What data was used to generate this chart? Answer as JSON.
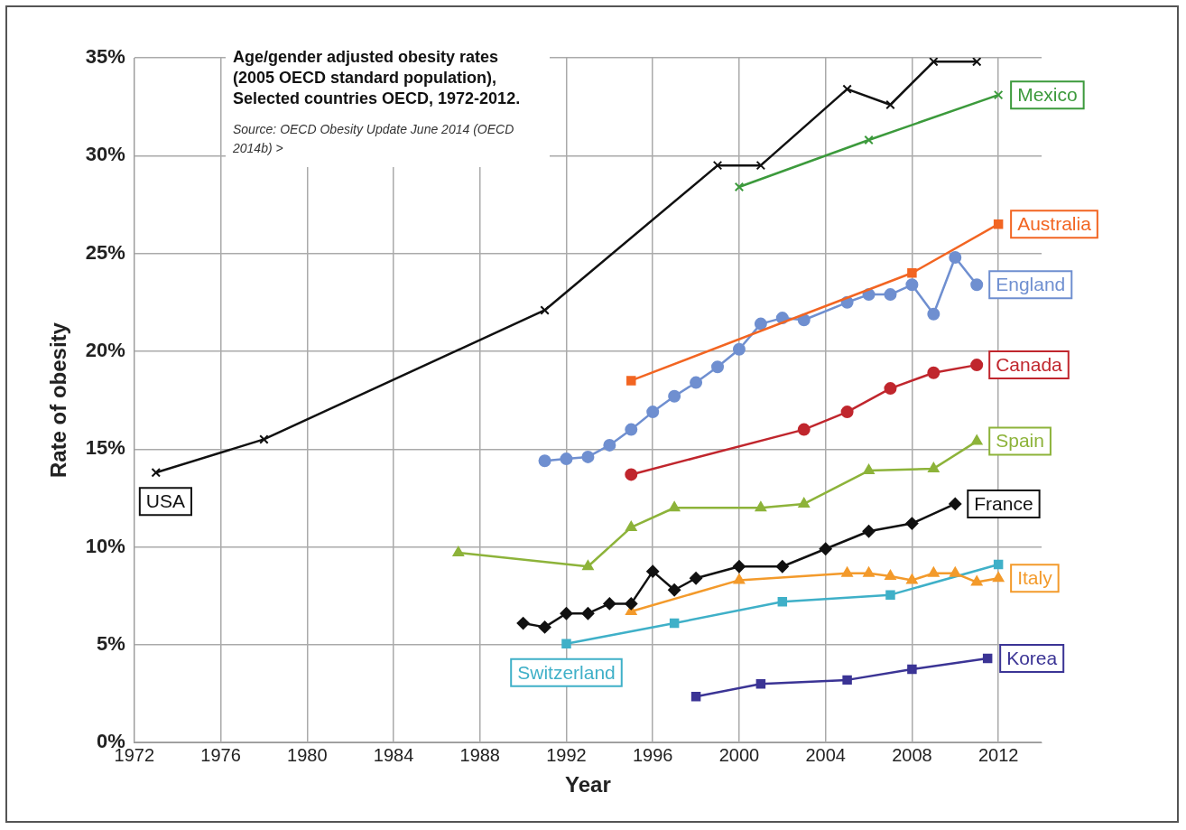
{
  "chart_data": {
    "type": "line",
    "title": "Age/gender adjusted obesity rates (2005 OECD standard population), Selected countries OECD, 1972-2012.",
    "annotations": [
      "Source: OECD Obesity Update June 2014 (OECD 2014b) >"
    ],
    "xlabel": "Year",
    "ylabel": "Rate of obesity",
    "xlim": [
      1972,
      2014
    ],
    "xticks": [
      1972,
      1976,
      1980,
      1984,
      1988,
      1992,
      1996,
      2000,
      2004,
      2008,
      2012
    ],
    "ylim": [
      0,
      35
    ],
    "yticks": [
      {
        "value": 0,
        "label": "0%"
      },
      {
        "value": 5,
        "label": "5%"
      },
      {
        "value": 10,
        "label": "10%"
      },
      {
        "value": 15,
        "label": "15%"
      },
      {
        "value": 20,
        "label": "20%"
      },
      {
        "value": 25,
        "label": "25%"
      },
      {
        "value": 30,
        "label": "30%"
      },
      {
        "value": 35,
        "label": "35%"
      }
    ],
    "grid": true,
    "legend": false,
    "series": [
      {
        "name": "USA",
        "color": "#111111",
        "marker": "cross",
        "x": [
          1973,
          1978,
          1991,
          1999,
          2001,
          2005,
          2007,
          2009,
          2011
        ],
        "values": [
          13.8,
          15.5,
          22.1,
          29.5,
          29.5,
          33.4,
          32.6,
          34.8,
          34.8
        ]
      },
      {
        "name": "Mexico",
        "color": "#3c9a3c",
        "marker": "cross",
        "x": [
          2000,
          2006,
          2012
        ],
        "values": [
          28.4,
          30.8,
          33.1
        ]
      },
      {
        "name": "Australia",
        "color": "#f26522",
        "marker": "square",
        "x": [
          1995,
          2008,
          2012
        ],
        "values": [
          18.5,
          24.0,
          26.5
        ]
      },
      {
        "name": "England",
        "color": "#6f8fd0",
        "marker": "circle",
        "x": [
          1991,
          1992,
          1993,
          1994,
          1995,
          1996,
          1997,
          1998,
          1999,
          2000,
          2001,
          2002,
          2003,
          2005,
          2006,
          2007,
          2008,
          2009,
          2010,
          2011
        ],
        "values": [
          14.4,
          14.5,
          14.6,
          15.2,
          16.0,
          16.9,
          17.7,
          18.4,
          19.2,
          20.1,
          21.4,
          21.7,
          21.6,
          22.5,
          22.9,
          22.9,
          23.4,
          21.9,
          24.8,
          23.4
        ]
      },
      {
        "name": "Canada",
        "color": "#c0262d",
        "marker": "circle",
        "x": [
          1995,
          2003,
          2005,
          2007,
          2009,
          2011
        ],
        "values": [
          13.7,
          16.0,
          16.9,
          18.1,
          18.9,
          19.3
        ]
      },
      {
        "name": "Spain",
        "color": "#8db33a",
        "marker": "triangle",
        "x": [
          1987,
          1993,
          1995,
          1997,
          2001,
          2003,
          2006,
          2009,
          2011
        ],
        "values": [
          9.7,
          9.0,
          11.0,
          12.0,
          12.0,
          12.2,
          13.9,
          14.0,
          15.4
        ]
      },
      {
        "name": "France",
        "color": "#111111",
        "marker": "diamond",
        "x": [
          1990,
          1991,
          1992,
          1993,
          1994,
          1995,
          1996,
          1997,
          1998,
          2000,
          2002,
          2004,
          2006,
          2008,
          2010
        ],
        "values": [
          6.1,
          5.9,
          6.6,
          6.6,
          7.1,
          7.1,
          8.75,
          7.8,
          8.4,
          9.0,
          9.0,
          9.9,
          10.8,
          11.2,
          12.2
        ]
      },
      {
        "name": "Italy",
        "color": "#f39a2b",
        "marker": "triangle",
        "x": [
          1995,
          2000,
          2005,
          2006,
          2007,
          2008,
          2009,
          2010,
          2011,
          2012
        ],
        "values": [
          6.7,
          8.3,
          8.65,
          8.65,
          8.5,
          8.3,
          8.65,
          8.65,
          8.2,
          8.4
        ]
      },
      {
        "name": "Switzerland",
        "color": "#3fb0c8",
        "marker": "square",
        "x": [
          1992,
          1997,
          2002,
          2007,
          2012
        ],
        "values": [
          5.05,
          6.1,
          7.2,
          7.55,
          9.1
        ]
      },
      {
        "name": "Korea",
        "color": "#3b3495",
        "marker": "square",
        "x": [
          1998,
          2001,
          2005,
          2008,
          2011.5
        ],
        "values": [
          2.35,
          3.0,
          3.2,
          3.75,
          4.3
        ]
      }
    ]
  }
}
